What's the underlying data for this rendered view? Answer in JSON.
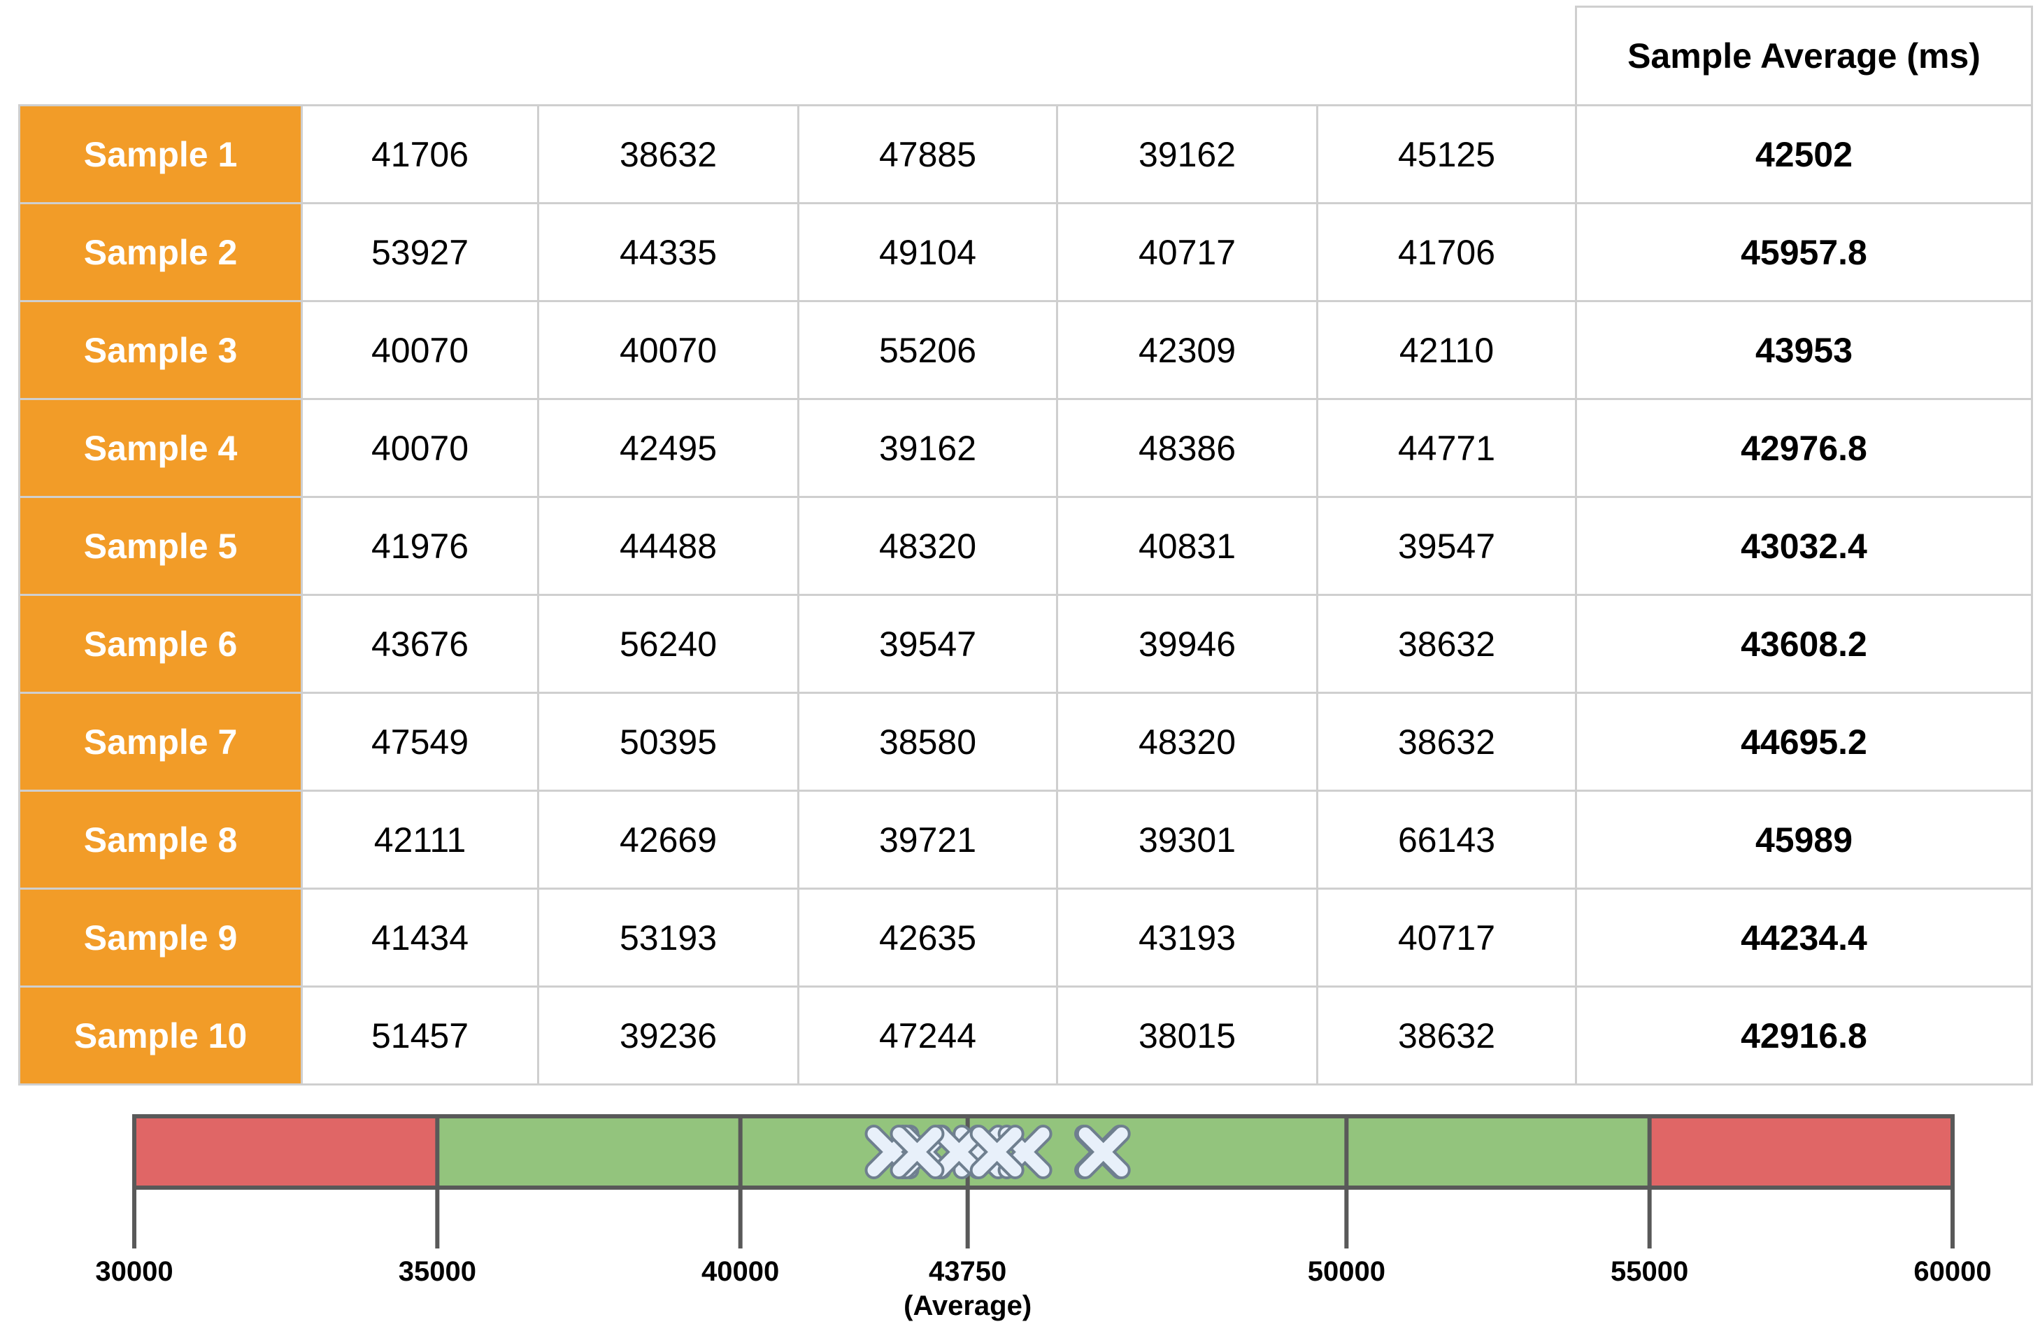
{
  "table": {
    "header": "Sample Average (ms)",
    "rows": [
      {
        "label": "Sample 1",
        "values": [
          "41706",
          "38632",
          "47885",
          "39162",
          "45125"
        ],
        "average": "42502"
      },
      {
        "label": "Sample 2",
        "values": [
          "53927",
          "44335",
          "49104",
          "40717",
          "41706"
        ],
        "average": "45957.8"
      },
      {
        "label": "Sample 3",
        "values": [
          "40070",
          "40070",
          "55206",
          "42309",
          "42110"
        ],
        "average": "43953"
      },
      {
        "label": "Sample 4",
        "values": [
          "40070",
          "42495",
          "39162",
          "48386",
          "44771"
        ],
        "average": "42976.8"
      },
      {
        "label": "Sample 5",
        "values": [
          "41976",
          "44488",
          "48320",
          "40831",
          "39547"
        ],
        "average": "43032.4"
      },
      {
        "label": "Sample 6",
        "values": [
          "43676",
          "56240",
          "39547",
          "39946",
          "38632"
        ],
        "average": "43608.2"
      },
      {
        "label": "Sample 7",
        "values": [
          "47549",
          "50395",
          "38580",
          "48320",
          "38632"
        ],
        "average": "44695.2"
      },
      {
        "label": "Sample 8",
        "values": [
          "42111",
          "42669",
          "39721",
          "39301",
          "66143"
        ],
        "average": "45989"
      },
      {
        "label": "Sample 9",
        "values": [
          "41434",
          "53193",
          "42635",
          "43193",
          "40717"
        ],
        "average": "44234.4"
      },
      {
        "label": "Sample 10",
        "values": [
          "51457",
          "39236",
          "47244",
          "38015",
          "38632"
        ],
        "average": "42916.8"
      }
    ]
  },
  "chart_data": {
    "type": "scatter",
    "xlim": [
      30000,
      60000
    ],
    "x_ticks": [
      30000,
      35000,
      40000,
      43750,
      50000,
      55000,
      60000
    ],
    "tick_labels": [
      "30000",
      "35000",
      "40000",
      "43750",
      "50000",
      "55000",
      "60000"
    ],
    "average_label": "(Average)",
    "zones": [
      {
        "from": 30000,
        "to": 35000,
        "color": "#e06666"
      },
      {
        "from": 35000,
        "to": 55000,
        "color": "#93c47d"
      },
      {
        "from": 55000,
        "to": 60000,
        "color": "#e06666"
      }
    ],
    "points": [
      42502,
      45957.8,
      43953,
      42976.8,
      43032.4,
      43608.2,
      44695.2,
      45989,
      44234.4,
      42916.8
    ],
    "marker": "x-icon",
    "marker_color": "#e8f0fa"
  }
}
